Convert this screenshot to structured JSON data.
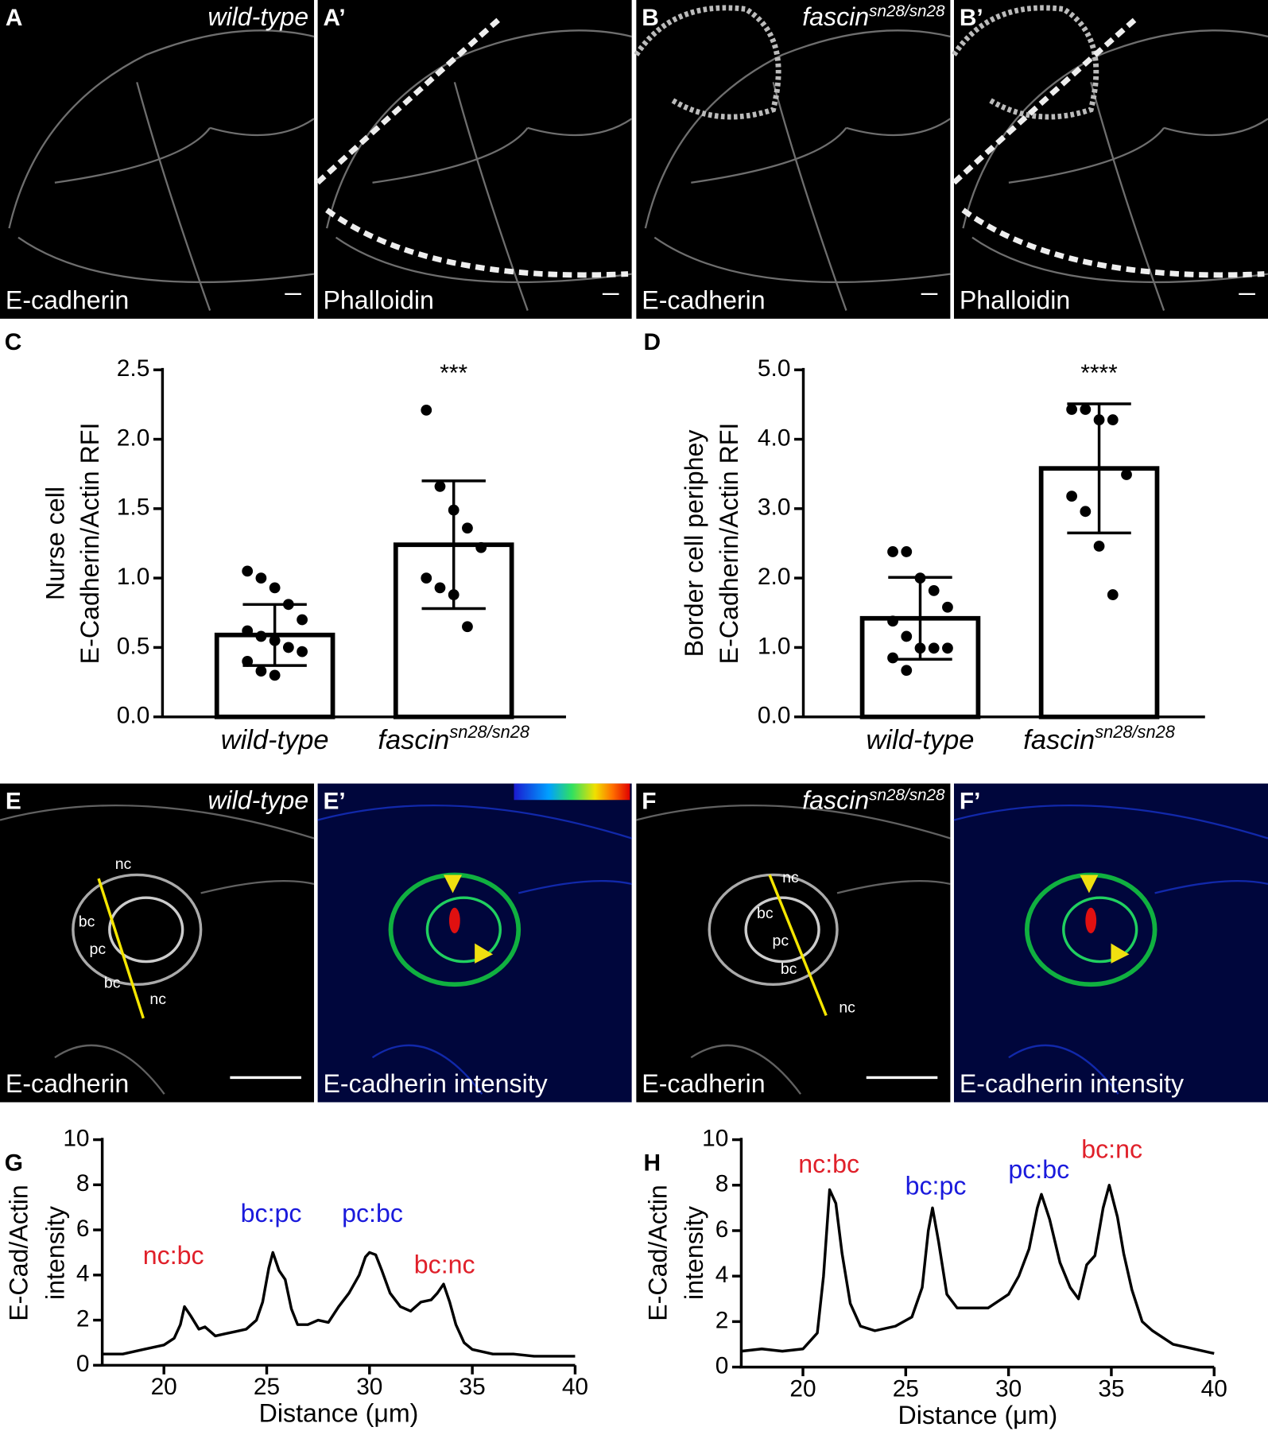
{
  "panels": [
    {
      "letter": "A",
      "genotype": "wild-type",
      "stain": "E-cadherin"
    },
    {
      "letter": "A’",
      "stain": "Phalloidin"
    },
    {
      "letter": "B",
      "genotype": "fascin",
      "genotype_superscript": "sn28/sn28",
      "stain": "E-cadherin"
    },
    {
      "letter": "B’",
      "stain": "Phalloidin"
    },
    {
      "letter": "E",
      "genotype": "wild-type",
      "stain": "E-cadherin",
      "regions": [
        "nc",
        "bc",
        "pc",
        "bc",
        "nc"
      ]
    },
    {
      "letter": "E’",
      "stain": "E-cadherin intensity"
    },
    {
      "letter": "F",
      "genotype": "fascin",
      "genotype_superscript": "sn28/sn28",
      "stain": "E-cadherin",
      "regions": [
        "nc",
        "bc",
        "pc",
        "bc",
        "nc"
      ]
    },
    {
      "letter": "F’",
      "stain": "E-cadherin intensity"
    }
  ],
  "chart_data": [
    {
      "type": "bar",
      "panel_letter": "C",
      "categories": [
        "wild-type",
        "fascin"
      ],
      "category_superscripts": [
        null,
        "sn28/sn28"
      ],
      "values": [
        0.59,
        1.24
      ],
      "errors": [
        0.22,
        0.46
      ],
      "points": [
        [
          1.05,
          1.0,
          0.93,
          0.81,
          0.7,
          0.62,
          0.58,
          0.55,
          0.5,
          0.47,
          0.4,
          0.33,
          0.3
        ],
        [
          2.21,
          1.66,
          1.49,
          1.36,
          1.22,
          1.0,
          0.93,
          0.88,
          0.65
        ]
      ],
      "significance": [
        null,
        "***"
      ],
      "y_label": [
        "Nurse cell",
        "E-Cadherin/Actin RFI"
      ],
      "ylim": [
        0,
        2.5
      ],
      "yticks": [
        {
          "value": 0,
          "label": "0.0"
        },
        0.5,
        {
          "value": 1,
          "label": "1.0"
        },
        1.5,
        {
          "value": 2,
          "label": "2.0"
        },
        2.5
      ]
    },
    {
      "type": "bar",
      "panel_letter": "D",
      "categories": [
        "wild-type",
        "fascin"
      ],
      "category_superscripts": [
        null,
        "sn28/sn28"
      ],
      "values": [
        1.42,
        3.58
      ],
      "errors": [
        0.59,
        0.93
      ],
      "points": [
        [
          2.38,
          2.38,
          2.0,
          1.82,
          1.58,
          1.38,
          1.16,
          0.99,
          0.99,
          0.99,
          0.85,
          0.67
        ],
        [
          4.43,
          4.43,
          4.28,
          4.28,
          3.49,
          3.18,
          2.96,
          2.46,
          1.76
        ]
      ],
      "significance": [
        null,
        "****"
      ],
      "y_label": [
        "Border cell periphey",
        "E-Cadherin/Actin RFI"
      ],
      "ylim": [
        0,
        5
      ],
      "yticks": [
        {
          "value": 0,
          "label": "0.0"
        },
        {
          "value": 1,
          "label": "1.0"
        },
        {
          "value": 2,
          "label": "2.0"
        },
        {
          "value": 3,
          "label": "3.0"
        },
        {
          "value": 4,
          "label": "4.0"
        },
        {
          "value": 5,
          "label": "5.0"
        }
      ]
    },
    {
      "type": "line",
      "panel_letter": "G",
      "color": "#000000",
      "x": [
        17,
        18,
        19,
        20,
        20.5,
        20.8,
        21,
        21.3,
        21.7,
        22,
        22.5,
        23,
        23.5,
        24,
        24.5,
        24.8,
        25.1,
        25.3,
        25.6,
        25.9,
        26.2,
        26.5,
        27,
        27.5,
        28,
        28.5,
        29,
        29.5,
        29.8,
        30,
        30.3,
        30.6,
        31,
        31.5,
        32,
        32.5,
        33,
        33.3,
        33.6,
        33.9,
        34.2,
        34.6,
        35,
        36,
        37,
        38,
        39,
        40
      ],
      "values": [
        0.5,
        0.5,
        0.7,
        0.9,
        1.2,
        1.8,
        2.6,
        2.2,
        1.6,
        1.7,
        1.3,
        1.4,
        1.5,
        1.6,
        2.0,
        2.8,
        4.3,
        5.0,
        4.2,
        3.8,
        2.5,
        1.8,
        1.8,
        2.0,
        1.9,
        2.6,
        3.2,
        4.0,
        4.8,
        5.0,
        4.9,
        4.2,
        3.2,
        2.6,
        2.4,
        2.8,
        2.9,
        3.2,
        3.6,
        2.8,
        1.8,
        1.0,
        0.7,
        0.5,
        0.5,
        0.4,
        0.4,
        0.4
      ],
      "annotations": [
        {
          "text": "nc:bc",
          "color": "#e0202a"
        },
        {
          "text": "bc:pc",
          "color": "#1a1adc"
        },
        {
          "text": "pc:bc",
          "color": "#1a1adc"
        },
        {
          "text": "bc:nc",
          "color": "#e0202a"
        }
      ],
      "x_label": "Distance (μm)",
      "y_label": [
        "E-Cad/Actin",
        "intensity"
      ],
      "xlim": [
        17,
        40
      ],
      "xticks": [
        20,
        25,
        30,
        35,
        40
      ],
      "ylim": [
        0,
        10
      ],
      "yticks": [
        0,
        2,
        4,
        6,
        8,
        10
      ]
    },
    {
      "type": "line",
      "panel_letter": "H",
      "color": "#000000",
      "x": [
        17,
        18,
        19,
        20,
        20.7,
        21,
        21.3,
        21.6,
        21.9,
        22.3,
        22.8,
        23.5,
        24.5,
        25.3,
        25.8,
        26.1,
        26.3,
        26.6,
        27,
        27.5,
        28,
        29,
        30,
        30.5,
        31,
        31.4,
        31.6,
        32,
        32.5,
        33,
        33.4,
        33.8,
        34.2,
        34.6,
        34.9,
        35.3,
        35.6,
        36,
        36.5,
        37,
        38,
        39,
        40
      ],
      "values": [
        0.7,
        0.8,
        0.7,
        0.8,
        1.5,
        4.0,
        7.8,
        7.2,
        5.0,
        2.8,
        1.8,
        1.6,
        1.8,
        2.2,
        3.5,
        6.0,
        7.0,
        5.5,
        3.2,
        2.6,
        2.6,
        2.6,
        3.2,
        4.0,
        5.2,
        7.0,
        7.6,
        6.5,
        4.6,
        3.5,
        3.0,
        4.5,
        4.9,
        7.0,
        8.0,
        6.6,
        5.0,
        3.4,
        2.0,
        1.6,
        1.0,
        0.8,
        0.6
      ],
      "annotations": [
        {
          "text": "nc:bc",
          "color": "#e0202a"
        },
        {
          "text": "bc:pc",
          "color": "#1a1adc"
        },
        {
          "text": "pc:bc",
          "color": "#1a1adc"
        },
        {
          "text": "bc:nc",
          "color": "#e0202a"
        }
      ],
      "x_label": "Distance (μm)",
      "y_label": [
        "E-Cad/Actin",
        "intensity"
      ],
      "xlim": [
        17,
        40
      ],
      "xticks": [
        20,
        25,
        30,
        35,
        40
      ],
      "ylim": [
        0,
        10
      ],
      "yticks": [
        0,
        2,
        4,
        6,
        8,
        10
      ]
    }
  ]
}
